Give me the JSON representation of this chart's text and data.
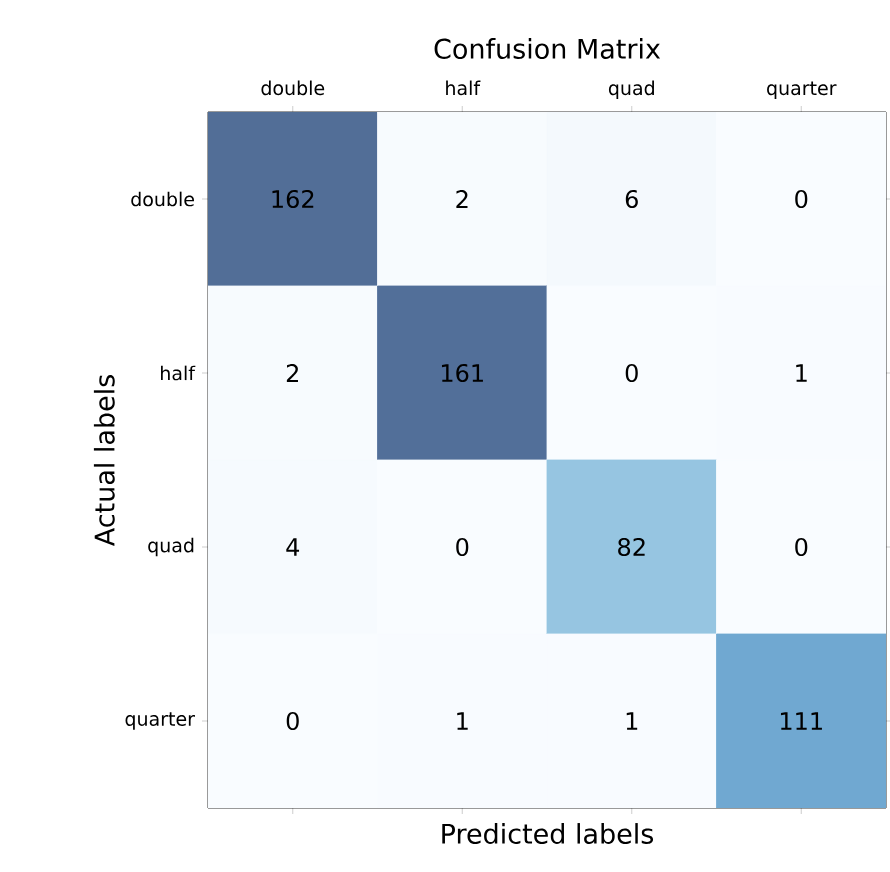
{
  "chart_data": {
    "type": "heatmap",
    "title": "Confusion Matrix",
    "xlabel": "Predicted labels",
    "ylabel": "Actual labels",
    "categories": [
      "double",
      "half",
      "quad",
      "quarter"
    ],
    "y_categories": [
      "double",
      "half",
      "quad",
      "quarter"
    ],
    "cells": [
      [
        162,
        2,
        6,
        0
      ],
      [
        2,
        161,
        0,
        1
      ],
      [
        4,
        0,
        82,
        0
      ],
      [
        0,
        1,
        1,
        111
      ]
    ],
    "data_labels": true
  }
}
